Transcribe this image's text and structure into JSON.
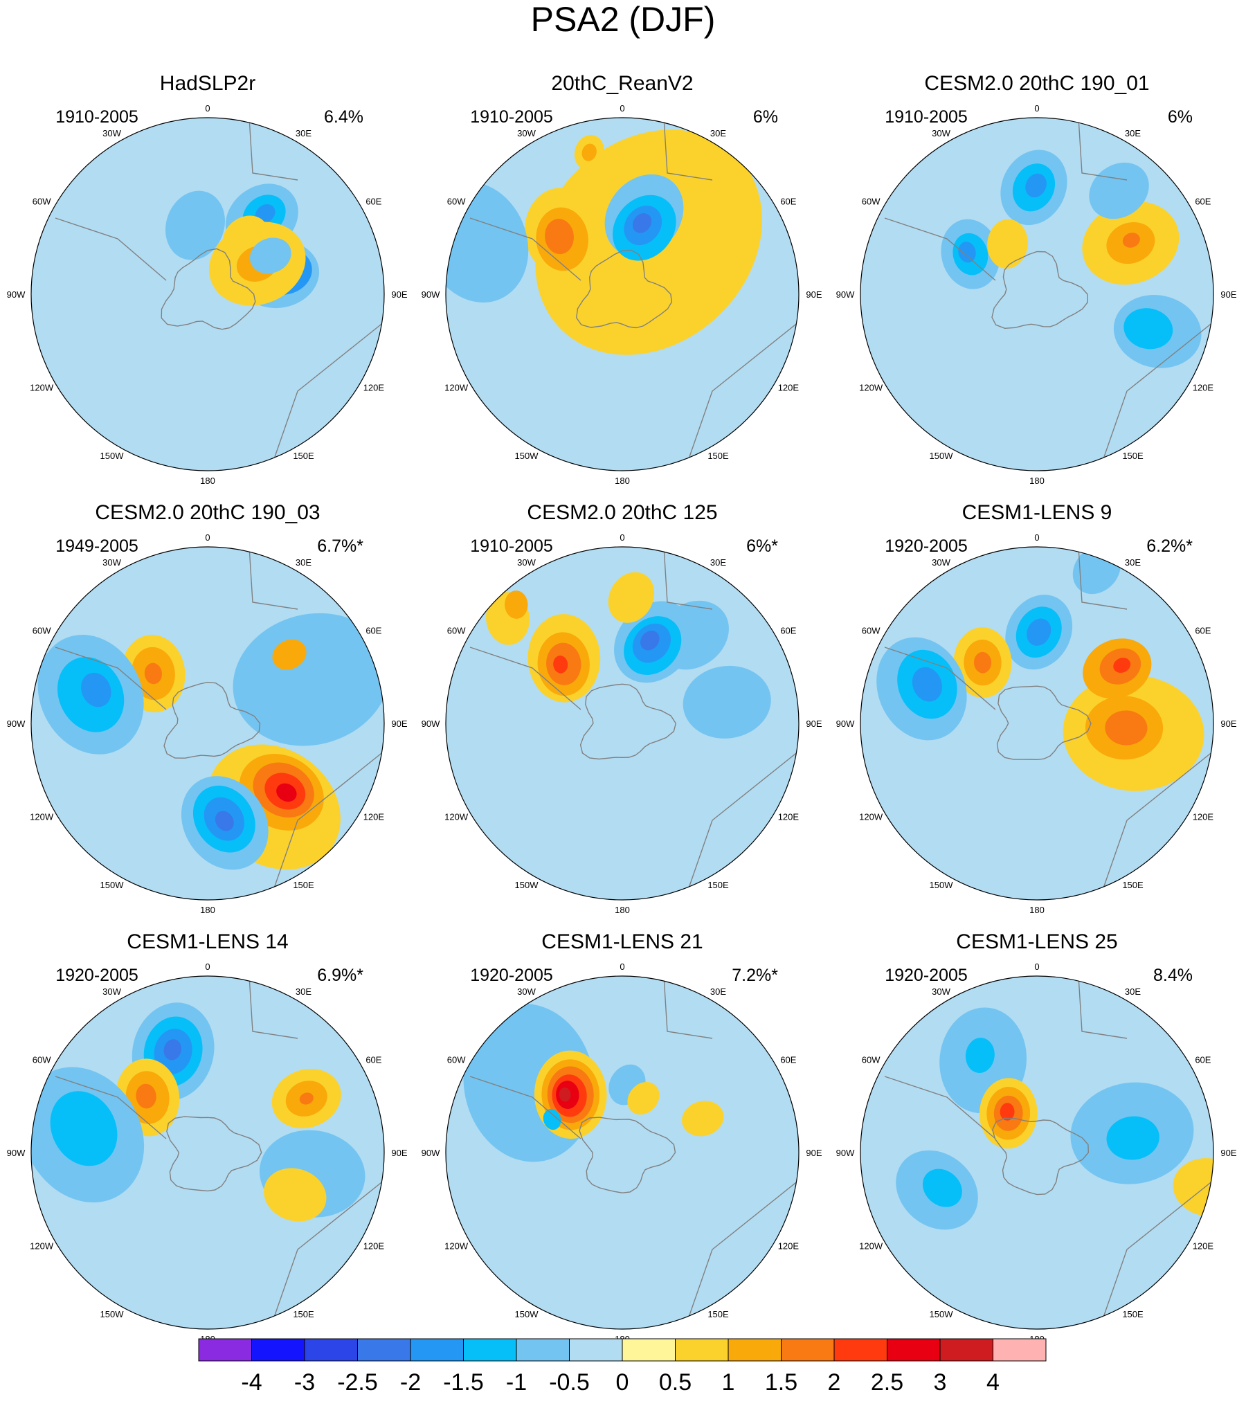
{
  "chart_data": {
    "type": "heatmap",
    "title": "PSA2 (DJF)",
    "projection": "south-polar-stereographic",
    "longitude_labels": [
      "0",
      "30E",
      "60E",
      "90E",
      "120E",
      "150E",
      "180",
      "150W",
      "120W",
      "90W",
      "60W",
      "30W"
    ],
    "panels": [
      {
        "name": "HadSLP2r",
        "period": "1910-2005",
        "variance": "6.4%",
        "anomalies": [
          [
            -1,
            0.3,
            0.38,
            0.19
          ],
          [
            -0.5,
            0.38,
            0.27,
            0.23
          ],
          [
            -1.5,
            0.41,
            0.29,
            0.16
          ],
          [
            -2,
            0.43,
            0.32,
            0.07
          ],
          [
            -0.5,
            0.48,
            0.95,
            0.22
          ],
          [
            -1,
            0.5,
            0.95,
            0.13
          ],
          [
            -1.5,
            0.51,
            0.95,
            0.06
          ],
          [
            0.5,
            0.35,
            0.98,
            0.14
          ],
          [
            0.5,
            0.3,
            0.55,
            0.28
          ],
          [
            1,
            0.3,
            0.55,
            0.12
          ],
          [
            -0.5,
            0.36,
            1.75,
            0.2
          ],
          [
            -0.5,
            0.38,
            0.55,
            0.12
          ]
        ]
      },
      {
        "name": "20thC_ReanV2",
        "period": "1910-2005",
        "variance": "6%",
        "anomalies": [
          [
            0.5,
            0.3,
            1.1,
            0.7
          ],
          [
            0.5,
            0.35,
            2.4,
            0.25
          ],
          [
            -0.5,
            0.42,
            1.3,
            0.25
          ],
          [
            -1,
            0.36,
            1.25,
            0.2
          ],
          [
            -1.5,
            0.37,
            1.28,
            0.12
          ],
          [
            -2,
            0.38,
            1.3,
            0.06
          ],
          [
            0.5,
            0.45,
            2.35,
            0.25
          ],
          [
            1,
            0.42,
            2.4,
            0.18
          ],
          [
            1.5,
            0.44,
            2.4,
            0.1
          ],
          [
            -0.5,
            0.8,
            2.8,
            0.35
          ],
          [
            0.5,
            0.75,
            1.8,
            0.1
          ],
          [
            1,
            0.75,
            1.8,
            0.05
          ]
        ]
      },
      {
        "name": "CESM2.0 20thC 190_01",
        "period": "1910-2005",
        "variance": "6%",
        "anomalies": [
          [
            -0.5,
            0.55,
            1.6,
            0.22
          ],
          [
            -1,
            0.55,
            1.6,
            0.14
          ],
          [
            -1.5,
            0.56,
            1.58,
            0.07
          ],
          [
            -0.5,
            0.4,
            2.6,
            0.2
          ],
          [
            -1,
            0.4,
            2.6,
            0.12
          ],
          [
            -1.5,
            0.42,
            2.6,
            0.06
          ],
          [
            0.5,
            0.3,
            2.1,
            0.14
          ],
          [
            0.5,
            0.55,
            0.5,
            0.28
          ],
          [
            1,
            0.55,
            0.5,
            0.14
          ],
          [
            1.5,
            0.56,
            0.52,
            0.05
          ],
          [
            -0.5,
            0.65,
            -0.3,
            0.25
          ],
          [
            -1,
            0.6,
            -0.3,
            0.14
          ],
          [
            -0.5,
            0.68,
            0.9,
            0.18
          ]
        ]
      },
      {
        "name": "CESM2.0 20thC 190_03",
        "period": "1949-2005",
        "variance": "6.7%*",
        "anomalies": [
          [
            0.5,
            0.55,
            -0.9,
            0.4
          ],
          [
            1,
            0.52,
            -0.75,
            0.25
          ],
          [
            1.5,
            0.52,
            -0.72,
            0.18
          ],
          [
            2,
            0.53,
            -0.72,
            0.12
          ],
          [
            2.5,
            0.54,
            -0.72,
            0.06
          ],
          [
            -0.5,
            0.52,
            -1.4,
            0.28
          ],
          [
            -1,
            0.5,
            -1.4,
            0.2
          ],
          [
            -1.5,
            0.5,
            -1.4,
            0.13
          ],
          [
            -2,
            0.51,
            -1.4,
            0.06
          ],
          [
            0.5,
            0.38,
            2.4,
            0.22
          ],
          [
            1,
            0.38,
            2.4,
            0.15
          ],
          [
            1.5,
            0.38,
            2.4,
            0.06
          ],
          [
            -0.5,
            0.62,
            2.9,
            0.35
          ],
          [
            -1,
            0.62,
            2.9,
            0.22
          ],
          [
            -1.5,
            0.6,
            2.85,
            0.1
          ],
          [
            -0.5,
            0.58,
            0.4,
            0.45
          ],
          [
            1,
            0.55,
            0.7,
            0.1
          ]
        ]
      },
      {
        "name": "CESM2.0 20thC 125",
        "period": "1910-2005",
        "variance": "6%*",
        "anomalies": [
          [
            -0.5,
            0.55,
            0.2,
            0.25
          ],
          [
            -0.5,
            0.58,
            0.9,
            0.22
          ],
          [
            -0.5,
            0.45,
            1.2,
            0.25
          ],
          [
            -1,
            0.43,
            1.2,
            0.18
          ],
          [
            -1.5,
            0.44,
            1.22,
            0.12
          ],
          [
            -2,
            0.45,
            1.25,
            0.06
          ],
          [
            0.5,
            0.45,
            2.3,
            0.25
          ],
          [
            1,
            0.43,
            2.35,
            0.18
          ],
          [
            1.5,
            0.43,
            2.35,
            0.12
          ],
          [
            2,
            0.44,
            2.38,
            0.05
          ],
          [
            0.5,
            0.8,
            2.4,
            0.15
          ],
          [
            1,
            0.82,
            2.3,
            0.08
          ],
          [
            0.5,
            0.65,
            1.5,
            0.15
          ]
        ]
      },
      {
        "name": "CESM1-LENS 9",
        "period": "1920-2005",
        "variance": "6.2%*",
        "anomalies": [
          [
            0.5,
            0.5,
            -0.1,
            0.4
          ],
          [
            1,
            0.45,
            -0.05,
            0.22
          ],
          [
            1.5,
            0.46,
            -0.05,
            0.12
          ],
          [
            1,
            0.5,
            0.6,
            0.2
          ],
          [
            1.5,
            0.52,
            0.6,
            0.12
          ],
          [
            2,
            0.53,
            0.6,
            0.05
          ],
          [
            -0.5,
            0.47,
            1.55,
            0.22
          ],
          [
            -1,
            0.47,
            1.55,
            0.15
          ],
          [
            -1.5,
            0.47,
            1.55,
            0.08
          ],
          [
            0.5,
            0.42,
            2.3,
            0.2
          ],
          [
            1,
            0.42,
            2.3,
            0.13
          ],
          [
            1.5,
            0.42,
            2.3,
            0.06
          ],
          [
            -0.5,
            0.62,
            2.85,
            0.3
          ],
          [
            -1,
            0.6,
            2.8,
            0.2
          ],
          [
            -1.5,
            0.6,
            2.8,
            0.1
          ],
          [
            -0.5,
            0.85,
            1.2,
            0.15
          ]
        ]
      },
      {
        "name": "CESM1-LENS 14",
        "period": "1920-2005",
        "variance": "6.9%*",
        "anomalies": [
          [
            -0.5,
            0.55,
            -0.2,
            0.3
          ],
          [
            -0.5,
            0.55,
            1.9,
            0.28
          ],
          [
            -1,
            0.55,
            1.9,
            0.2
          ],
          [
            -1.5,
            0.55,
            1.9,
            0.13
          ],
          [
            -2,
            0.56,
            1.9,
            0.06
          ],
          [
            0.5,
            0.42,
            2.4,
            0.22
          ],
          [
            1,
            0.42,
            2.4,
            0.15
          ],
          [
            1.5,
            0.43,
            2.4,
            0.07
          ],
          [
            0.5,
            0.58,
            0.5,
            0.2
          ],
          [
            1,
            0.58,
            0.5,
            0.12
          ],
          [
            1.5,
            0.58,
            0.5,
            0.04
          ],
          [
            -0.5,
            0.65,
            3.0,
            0.4
          ],
          [
            -1,
            0.65,
            2.95,
            0.22
          ],
          [
            0.5,
            0.5,
            -0.45,
            0.18
          ]
        ]
      },
      {
        "name": "CESM1-LENS 21",
        "period": "1920-2005",
        "variance": "7.2%*",
        "anomalies": [
          [
            -0.5,
            0.6,
            2.5,
            0.45
          ],
          [
            -0.5,
            0.35,
            1.5,
            0.12
          ],
          [
            0.5,
            0.4,
            2.3,
            0.25
          ],
          [
            1,
            0.4,
            2.3,
            0.2
          ],
          [
            1.5,
            0.4,
            2.3,
            0.16
          ],
          [
            2,
            0.4,
            2.32,
            0.12
          ],
          [
            2.5,
            0.41,
            2.33,
            0.08
          ],
          [
            3,
            0.42,
            2.35,
            0.04
          ],
          [
            -1,
            0.4,
            2.7,
            0.06
          ],
          [
            0.5,
            0.45,
            0.4,
            0.12
          ],
          [
            0.5,
            0.3,
            1.2,
            0.1
          ]
        ]
      },
      {
        "name": "CESM1-LENS 25",
        "period": "1920-2005",
        "variance": "8.4%",
        "anomalies": [
          [
            -0.5,
            0.5,
            0.2,
            0.35
          ],
          [
            -1,
            0.5,
            0.15,
            0.15
          ],
          [
            -0.5,
            0.55,
            2.1,
            0.3
          ],
          [
            -1,
            0.58,
            2.1,
            0.1
          ],
          [
            -0.5,
            0.55,
            3.5,
            0.25
          ],
          [
            -1,
            0.52,
            3.5,
            0.12
          ],
          [
            0.5,
            0.25,
            2.2,
            0.2
          ],
          [
            1,
            0.25,
            2.2,
            0.15
          ],
          [
            1.5,
            0.25,
            2.2,
            0.1
          ],
          [
            2,
            0.26,
            2.2,
            0.05
          ],
          [
            0.5,
            0.9,
            -0.2,
            0.2
          ]
        ]
      }
    ],
    "colorbar": {
      "levels": [
        -4,
        -3,
        -2.5,
        -2,
        -1.5,
        -1,
        -0.5,
        0,
        0.5,
        1,
        1.5,
        2,
        2.5,
        3,
        4
      ],
      "labels": [
        "-4",
        "-3",
        "-2.5",
        "-2",
        "-1.5",
        "-1",
        "-0.5",
        "0",
        "0.5",
        "1",
        "1.5",
        "2",
        "2.5",
        "3",
        "4"
      ],
      "colors": [
        "#8a2be2",
        "#1414ff",
        "#2c45e8",
        "#3878e8",
        "#2497f5",
        "#06bff8",
        "#74c4f1",
        "#b2dcf2",
        "#fff69a",
        "#fbd22c",
        "#f9a90a",
        "#f97912",
        "#ff3a0e",
        "#e80012",
        "#cf1c20",
        "#ffb2b2"
      ]
    }
  }
}
